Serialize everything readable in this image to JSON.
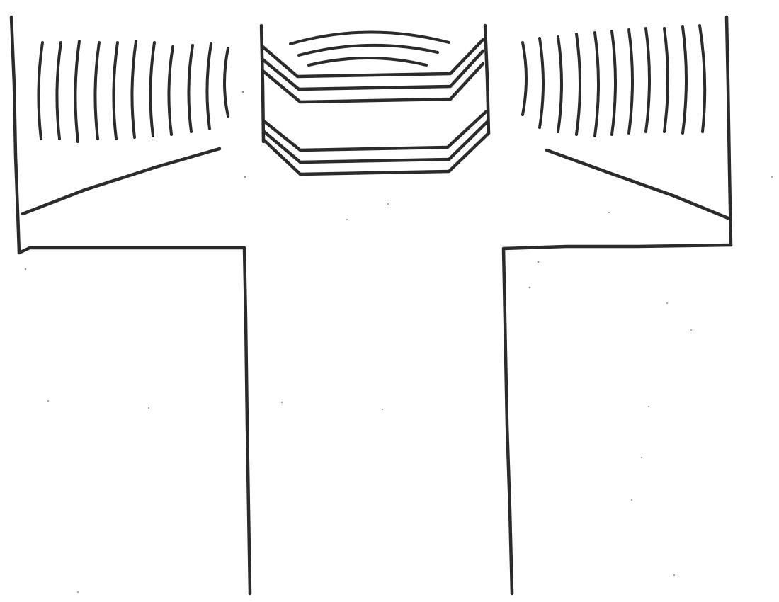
{
  "drawing": {
    "kind": "hand-drawn line sketch",
    "ink_color": "#2b2b2b",
    "paper_color": "#ffffff",
    "text": []
  }
}
